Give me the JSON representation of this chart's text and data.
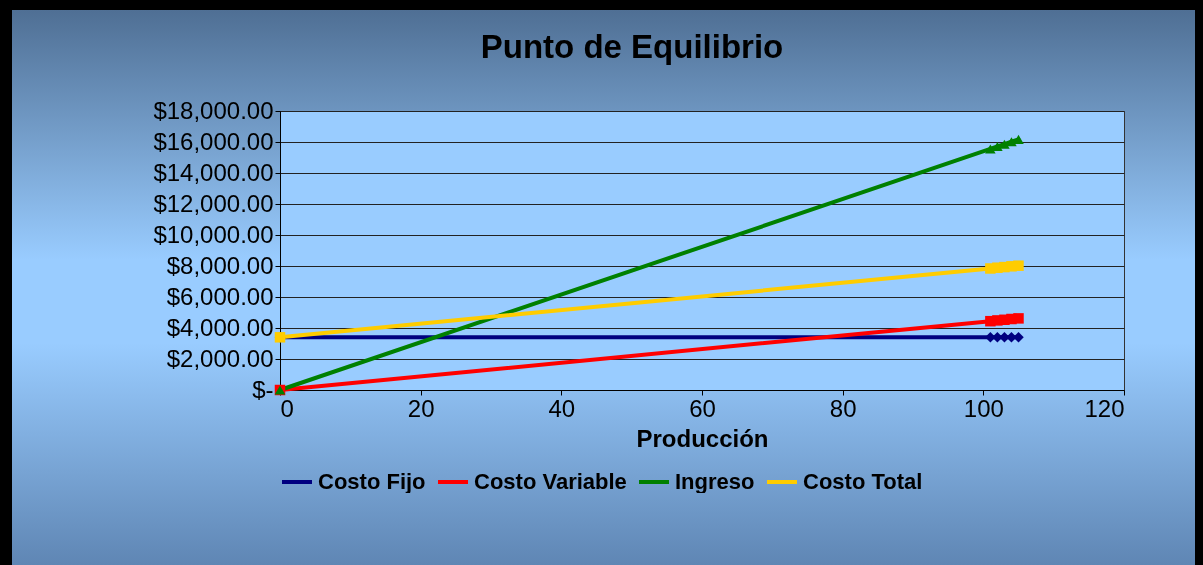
{
  "chart_data": {
    "type": "line",
    "title": "Punto de Equilibrio",
    "xlabel": "Producción",
    "x": [
      0,
      101,
      102,
      103,
      104,
      105
    ],
    "series": [
      {
        "name": "Costo Fijo",
        "color": "#000080",
        "marker": "diamond",
        "values": [
          3400,
          3400,
          3400,
          3400,
          3400,
          3400
        ]
      },
      {
        "name": "Costo Variable",
        "color": "#ff0000",
        "marker": "square",
        "values": [
          0,
          4440,
          4490,
          4530,
          4580,
          4620
        ]
      },
      {
        "name": "Ingreso",
        "color": "#008000",
        "marker": "triangle",
        "values": [
          0,
          15550,
          15710,
          15860,
          16020,
          16170
        ]
      },
      {
        "name": "Costo Total",
        "color": "#ffcc00",
        "marker": "square",
        "values": [
          3400,
          7840,
          7890,
          7930,
          7980,
          8020
        ]
      }
    ],
    "xlim": [
      0,
      120
    ],
    "xticks": [
      0,
      20,
      40,
      60,
      80,
      100,
      120
    ],
    "ylim": [
      0,
      18000
    ],
    "yticks": [
      {
        "value": 0,
        "label": "$-"
      },
      {
        "value": 2000,
        "label": "$2,000.00"
      },
      {
        "value": 4000,
        "label": "$4,000.00"
      },
      {
        "value": 6000,
        "label": "$6,000.00"
      },
      {
        "value": 8000,
        "label": "$8,000.00"
      },
      {
        "value": 10000,
        "label": "$10,000.00"
      },
      {
        "value": 12000,
        "label": "$12,000.00"
      },
      {
        "value": 14000,
        "label": "$14,000.00"
      },
      {
        "value": 16000,
        "label": "$16,000.00"
      },
      {
        "value": 18000,
        "label": "$18,000.00"
      }
    ],
    "grid": "y",
    "legend": "bottom",
    "line_style": "solid"
  }
}
